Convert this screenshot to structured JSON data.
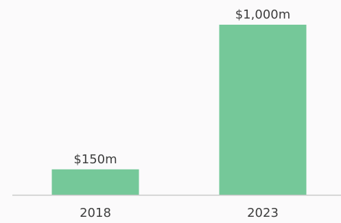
{
  "chart_data": {
    "type": "bar",
    "categories": [
      "2018",
      "2023"
    ],
    "values": [
      150,
      1000
    ],
    "data_labels": [
      "$150m",
      "$1,000m"
    ],
    "ylim": [
      0,
      1000
    ],
    "grid": false,
    "colors": {
      "bar": "#75c899",
      "baseline": "#c9c9c9",
      "text": "#3d3d3d",
      "background": "#fbfafb"
    }
  }
}
